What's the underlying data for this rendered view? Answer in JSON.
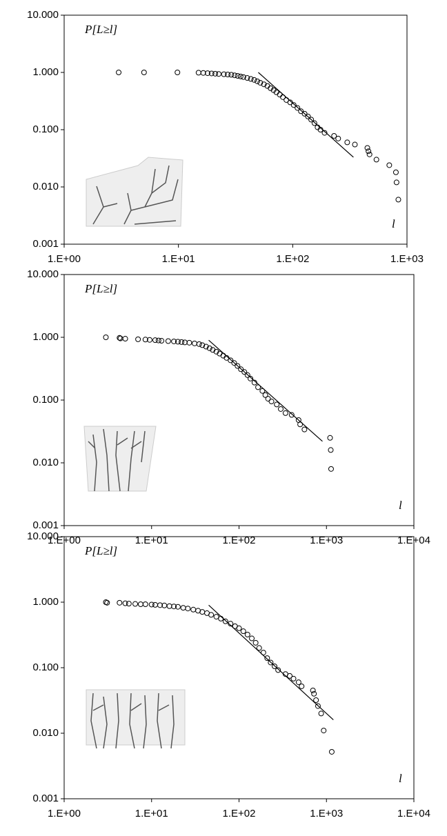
{
  "chart_data": [
    {
      "type": "scatter",
      "y_label": "P[L≥l]",
      "x_label": "l",
      "log_x": true,
      "log_y": true,
      "color": "#000000",
      "xlim": [
        1,
        1000
      ],
      "ylim": [
        0.001,
        10
      ],
      "xticks": [
        {
          "value": 1,
          "label": "1.E+00"
        },
        {
          "value": 10,
          "label": "1.E+01"
        },
        {
          "value": 100,
          "label": "1.E+02"
        },
        {
          "value": 1000,
          "label": "1.E+03"
        }
      ],
      "yticks": [
        {
          "value": 0.001,
          "label": "0.001"
        },
        {
          "value": 0.01,
          "label": "0.010"
        },
        {
          "value": 0.1,
          "label": "0.100"
        },
        {
          "value": 1,
          "label": "1.000"
        },
        {
          "value": 10,
          "label": "10.000"
        }
      ],
      "x": [
        3,
        5,
        9.8,
        15,
        16.5,
        18,
        19.5,
        21,
        22.5,
        25,
        27,
        29,
        31,
        33,
        35,
        37,
        40,
        43,
        46,
        49,
        52,
        56,
        60,
        64,
        68,
        72,
        77,
        82,
        88,
        95,
        102,
        110,
        118,
        127,
        136,
        145,
        155,
        165,
        175,
        190,
        230,
        250,
        300,
        350,
        450,
        460,
        470,
        540,
        700,
        800,
        810,
        840
      ],
      "values": [
        1.0,
        1.0,
        1.0,
        0.99,
        0.98,
        0.97,
        0.96,
        0.95,
        0.94,
        0.93,
        0.92,
        0.91,
        0.89,
        0.87,
        0.85,
        0.83,
        0.8,
        0.77,
        0.74,
        0.7,
        0.66,
        0.62,
        0.58,
        0.53,
        0.49,
        0.45,
        0.41,
        0.37,
        0.33,
        0.3,
        0.27,
        0.24,
        0.21,
        0.19,
        0.17,
        0.15,
        0.13,
        0.11,
        0.1,
        0.088,
        0.078,
        0.07,
        0.06,
        0.055,
        0.048,
        0.042,
        0.037,
        0.03,
        0.024,
        0.018,
        0.012,
        0.006
      ],
      "fit_line": {
        "x": [
          50,
          340
        ],
        "values": [
          1.0,
          0.033
        ]
      }
    },
    {
      "type": "scatter",
      "y_label": "P[L≥l]",
      "x_label": "l",
      "log_x": true,
      "log_y": true,
      "color": "#000000",
      "xlim": [
        1,
        10000
      ],
      "ylim": [
        0.001,
        10
      ],
      "xticks": [
        {
          "value": 1,
          "label": "1.E+00"
        },
        {
          "value": 10,
          "label": "1.E+01"
        },
        {
          "value": 100,
          "label": "1.E+02"
        },
        {
          "value": 1000,
          "label": "1.E+03"
        },
        {
          "value": 10000,
          "label": "1.E+04"
        }
      ],
      "yticks": [
        {
          "value": 0.001,
          "label": "0.001"
        },
        {
          "value": 0.01,
          "label": "0.010"
        },
        {
          "value": 0.1,
          "label": "0.100"
        },
        {
          "value": 1,
          "label": "1.000"
        },
        {
          "value": 10,
          "label": "10.000"
        }
      ],
      "x": [
        3,
        4.3,
        4.4,
        5,
        7,
        8.5,
        9.5,
        11,
        12,
        13,
        15.5,
        18,
        20,
        22,
        24,
        27,
        31,
        35,
        38,
        42,
        46,
        50,
        55,
        60,
        66,
        72,
        80,
        88,
        96,
        105,
        115,
        125,
        135,
        150,
        165,
        185,
        200,
        215,
        235,
        270,
        300,
        340,
        400,
        480,
        500,
        560,
        1100,
        1120,
        1130
      ],
      "values": [
        1.0,
        0.98,
        0.96,
        0.95,
        0.93,
        0.92,
        0.91,
        0.9,
        0.89,
        0.88,
        0.87,
        0.86,
        0.85,
        0.84,
        0.83,
        0.82,
        0.8,
        0.78,
        0.75,
        0.71,
        0.67,
        0.63,
        0.59,
        0.55,
        0.51,
        0.47,
        0.43,
        0.39,
        0.35,
        0.31,
        0.28,
        0.25,
        0.22,
        0.19,
        0.16,
        0.14,
        0.12,
        0.105,
        0.095,
        0.085,
        0.072,
        0.062,
        0.058,
        0.048,
        0.041,
        0.034,
        0.025,
        0.016,
        0.008
      ],
      "fit_line": {
        "x": [
          45,
          900
        ],
        "values": [
          0.9,
          0.022
        ]
      }
    },
    {
      "type": "scatter",
      "y_label": "P[L≥l]",
      "x_label": "l",
      "log_x": true,
      "log_y": true,
      "color": "#000000",
      "xlim": [
        1,
        10000
      ],
      "ylim": [
        0.001,
        10
      ],
      "xticks": [
        {
          "value": 1,
          "label": "1.E+00"
        },
        {
          "value": 10,
          "label": "1.E+01"
        },
        {
          "value": 100,
          "label": "1.E+02"
        },
        {
          "value": 1000,
          "label": "1.E+03"
        },
        {
          "value": 10000,
          "label": "1.E+04"
        }
      ],
      "yticks": [
        {
          "value": 0.001,
          "label": "0.001"
        },
        {
          "value": 0.01,
          "label": "0.010"
        },
        {
          "value": 0.1,
          "label": "0.100"
        },
        {
          "value": 1,
          "label": "1.000"
        },
        {
          "value": 10,
          "label": "10.000"
        }
      ],
      "x": [
        3,
        3.1,
        4.3,
        5,
        5.5,
        6.5,
        7.5,
        8.5,
        10,
        11,
        12.5,
        14,
        16,
        18,
        20,
        23,
        26,
        30,
        34,
        38,
        43,
        48,
        55,
        62,
        70,
        80,
        90,
        100,
        112,
        125,
        140,
        155,
        170,
        190,
        210,
        230,
        255,
        280,
        340,
        380,
        420,
        480,
        520,
        700,
        720,
        760,
        800,
        870,
        930,
        1150
      ],
      "values": [
        1.0,
        0.98,
        0.98,
        0.96,
        0.95,
        0.94,
        0.93,
        0.93,
        0.92,
        0.91,
        0.9,
        0.89,
        0.87,
        0.86,
        0.85,
        0.82,
        0.8,
        0.77,
        0.74,
        0.71,
        0.68,
        0.64,
        0.6,
        0.56,
        0.51,
        0.47,
        0.43,
        0.4,
        0.36,
        0.32,
        0.28,
        0.24,
        0.2,
        0.17,
        0.14,
        0.12,
        0.105,
        0.092,
        0.08,
        0.075,
        0.068,
        0.06,
        0.052,
        0.045,
        0.04,
        0.032,
        0.026,
        0.02,
        0.011,
        0.0052
      ],
      "fit_line": {
        "x": [
          45,
          1200
        ],
        "values": [
          0.9,
          0.016
        ]
      }
    }
  ]
}
